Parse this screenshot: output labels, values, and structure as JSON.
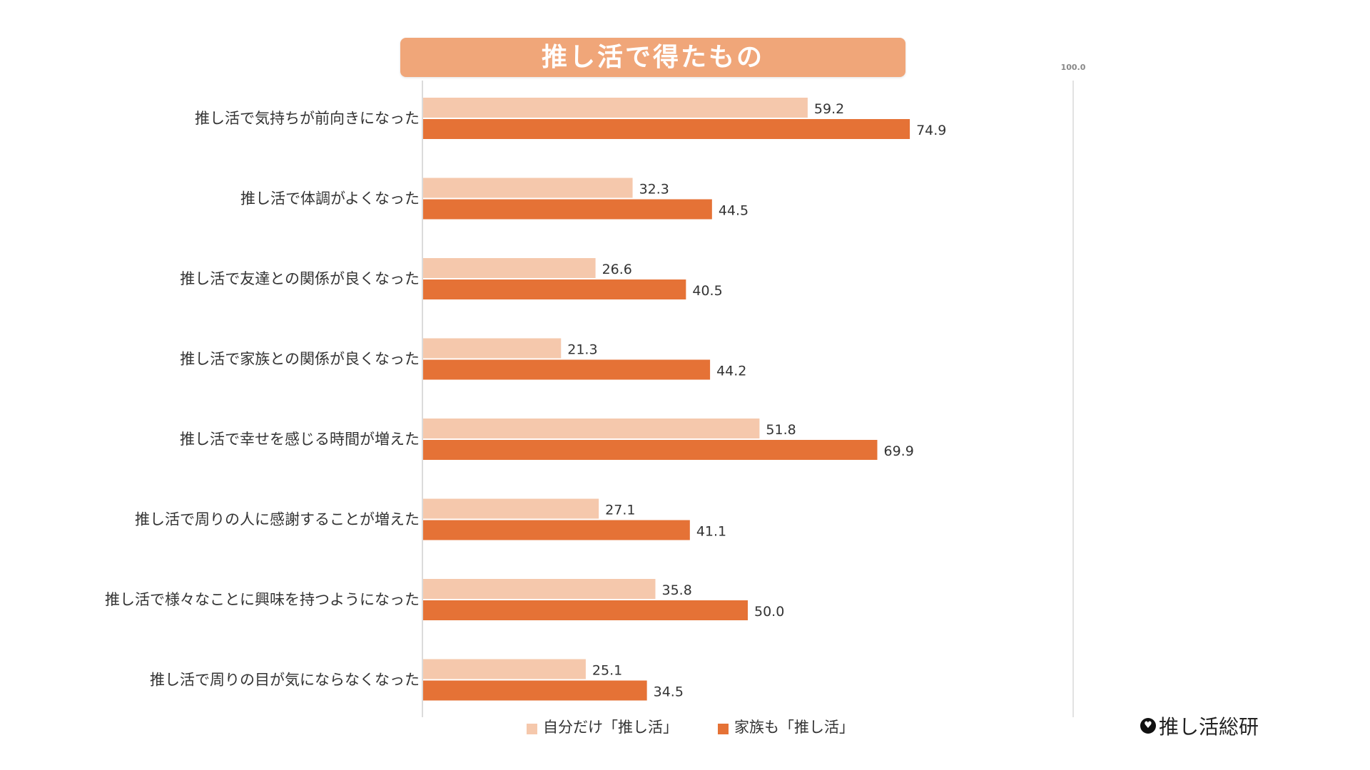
{
  "chart_data": {
    "type": "bar",
    "orientation": "horizontal",
    "title": "推し活で得たもの",
    "categories": [
      "推し活で気持ちが前向きになった",
      "推し活で体調がよくなった",
      "推し活で友達との関係が良くなった",
      "推し活で家族との関係が良くなった",
      "推し活で幸せを感じる時間が増えた",
      "推し活で周りの人に感謝することが増えた",
      "推し活で様々なことに興味を持つようになった",
      "推し活で周りの目が気にならなくなった"
    ],
    "series": [
      {
        "name": "自分だけ「推し活」",
        "color": "#f5c8ac",
        "values": [
          59.2,
          32.3,
          26.6,
          21.3,
          51.8,
          27.1,
          35.8,
          25.1
        ]
      },
      {
        "name": "家族も「推し活」",
        "color": "#e57236",
        "values": [
          74.9,
          44.5,
          40.5,
          44.2,
          69.9,
          41.1,
          50.0,
          34.5
        ]
      }
    ],
    "xlim": [
      0,
      100
    ],
    "x_tick_label": "100.0",
    "legend_position": "bottom",
    "grid": false
  },
  "logo_text": "推し活総研"
}
